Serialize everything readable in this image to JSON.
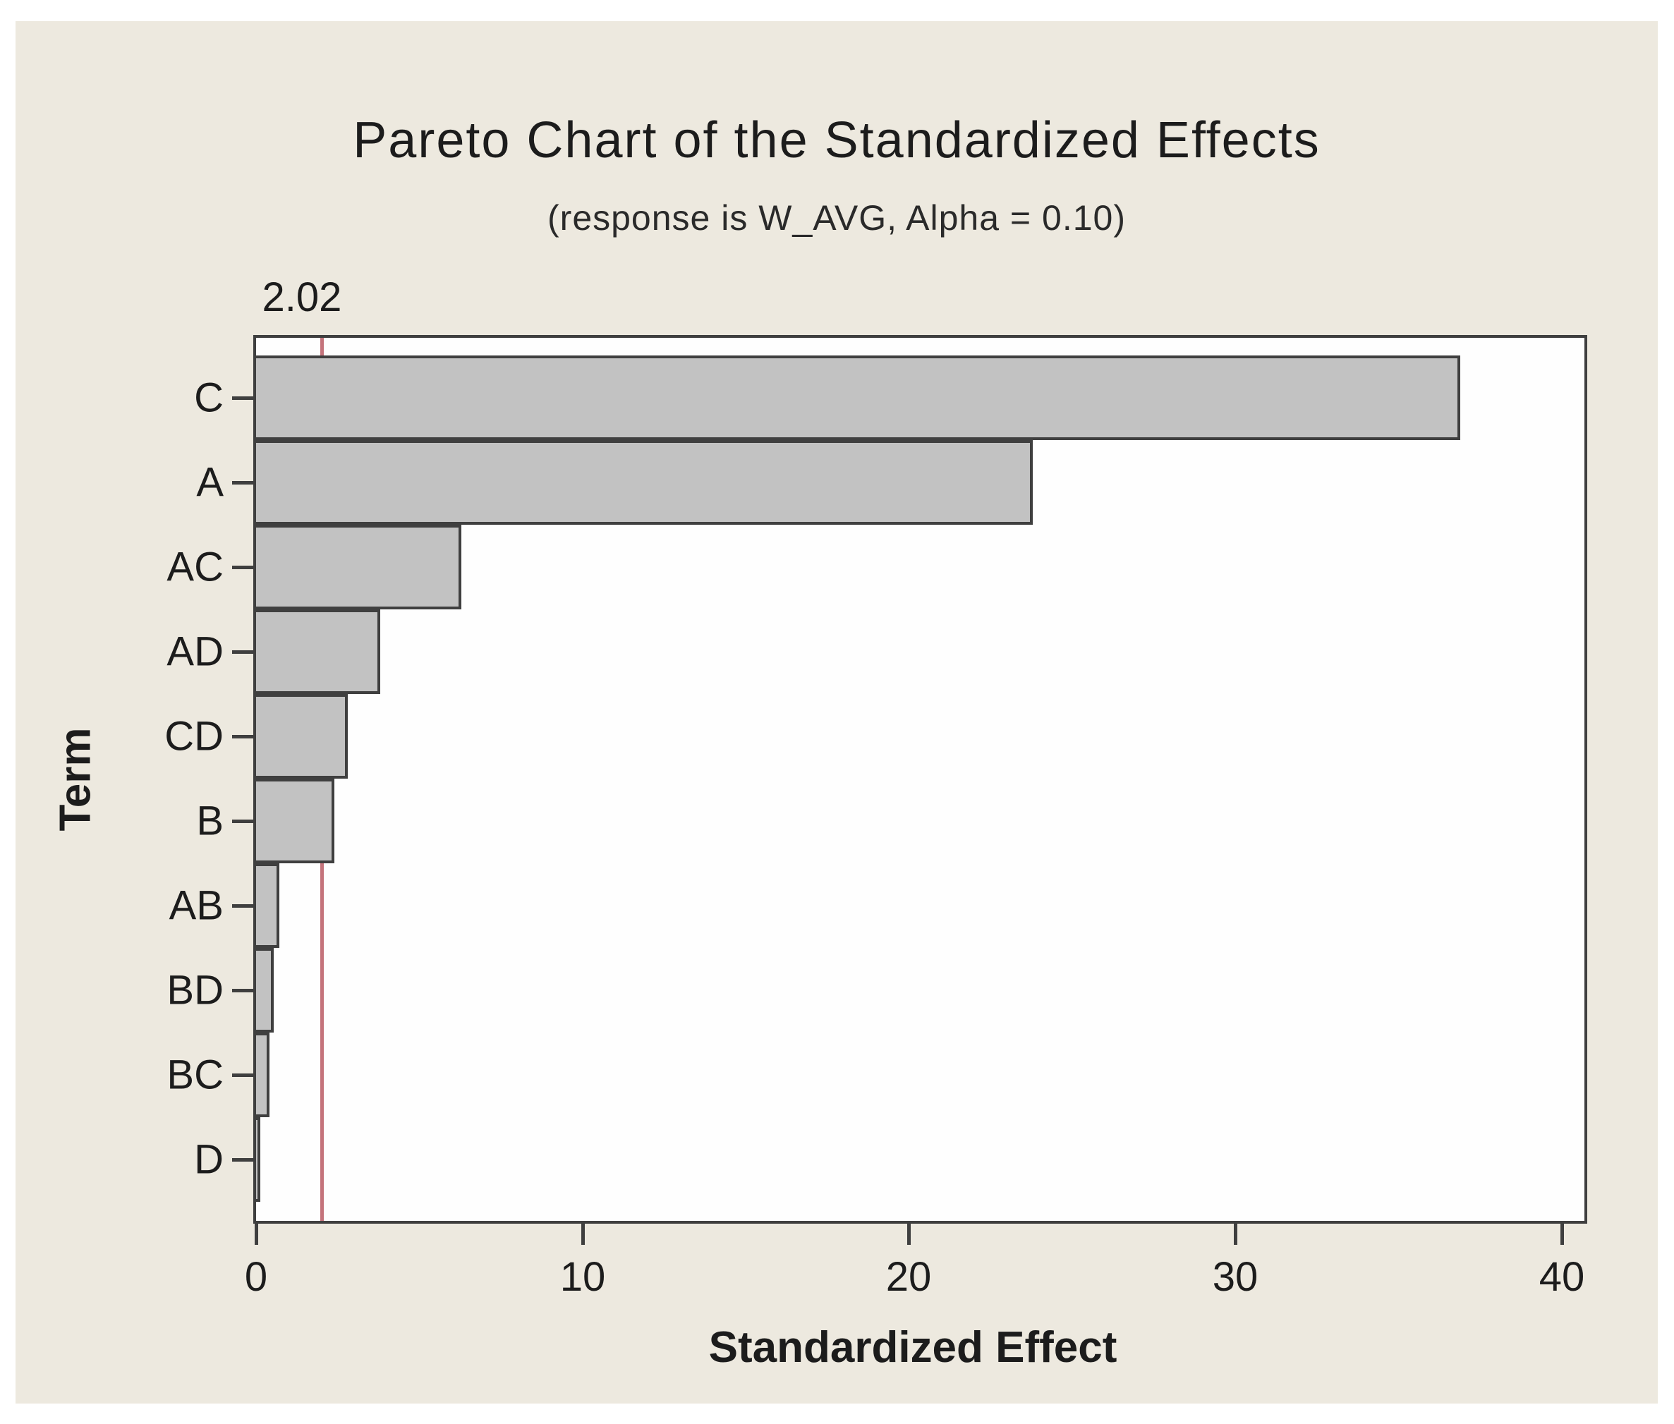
{
  "title": "Pareto Chart of the Standardized Effects",
  "subtitle": "(response is W_AVG, Alpha = 0.10)",
  "axis": {
    "x_title": "Standardized Effect",
    "y_title": "Term"
  },
  "reference": {
    "label": "2.02",
    "value": 2.02
  },
  "chart_data": {
    "type": "bar",
    "orientation": "horizontal",
    "title": "Pareto Chart of the Standardized Effects",
    "subtitle": "(response is W_AVG, Alpha = 0.10)",
    "xlabel": "Standardized Effect",
    "ylabel": "Term",
    "categories": [
      "C",
      "A",
      "AC",
      "AD",
      "CD",
      "B",
      "AB",
      "BD",
      "BC",
      "D"
    ],
    "values": [
      36.9,
      23.8,
      6.3,
      3.8,
      2.8,
      2.4,
      0.72,
      0.55,
      0.42,
      0.12
    ],
    "x_ticks": [
      0,
      10,
      20,
      30,
      40
    ],
    "xlim": [
      0,
      40.7
    ],
    "grid": false,
    "legend": false,
    "reference_line": {
      "value": 2.02,
      "label": "2.02"
    }
  },
  "colors": {
    "canvas_bg": "#ede9df",
    "plot_bg": "#fefefe",
    "frame": "#3f3f3f",
    "bar_fill": "#c2c2c2",
    "bar_border": "#3f3f3f",
    "reference_line": "#c4737b",
    "text": "#1c1c1c"
  }
}
